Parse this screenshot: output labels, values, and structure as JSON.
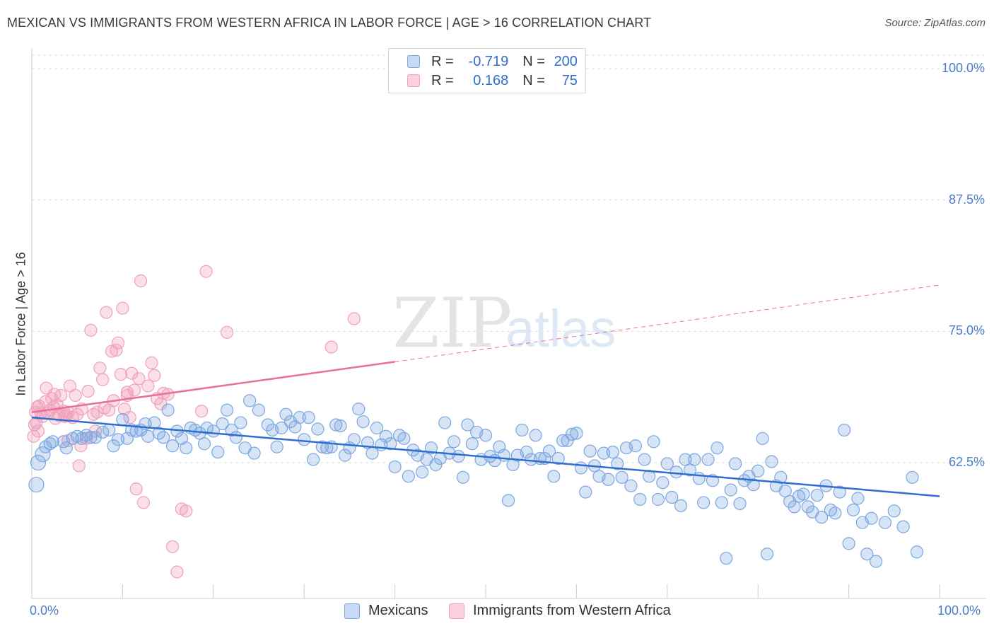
{
  "title": "MEXICAN VS IMMIGRANTS FROM WESTERN AFRICA IN LABOR FORCE | AGE > 16 CORRELATION CHART",
  "source": "Source: ZipAtlas.com",
  "watermark": {
    "zip": "ZIP",
    "atlas": "atlas"
  },
  "legend": {
    "r_label": "R =",
    "n_label": "N =",
    "rows": [
      {
        "r": "-0.719",
        "n": "200"
      },
      {
        "r": "0.168",
        "n": "75"
      }
    ]
  },
  "bottom_legend": [
    "Mexicans",
    "Immigrants from Western Africa"
  ],
  "colors": {
    "blue": "#7ba7e0",
    "blue_line": "#2f6ecf",
    "pink": "#f0a0bc",
    "pink_line": "#e8709a",
    "axis_text": "#4a7ecb"
  },
  "chart_data": {
    "type": "scatter",
    "title": "MEXICAN VS IMMIGRANTS FROM WESTERN AFRICA IN LABOR FORCE | AGE > 16 CORRELATION CHART",
    "xlabel": "",
    "ylabel": "In Labor Force | Age > 16",
    "xlim": [
      0,
      100
    ],
    "ylim": [
      51.5,
      101.5
    ],
    "x_tick_labels": [
      "0.0%",
      "100.0%"
    ],
    "y_ticks": [
      62.5,
      75.0,
      87.5,
      100.0
    ],
    "y_tick_labels": [
      "62.5%",
      "75.0%",
      "87.5%",
      "100.0%"
    ],
    "grid": true,
    "legend_position": "top-center",
    "series": [
      {
        "name": "Mexicans",
        "color": "#7ba7e0",
        "r": -0.719,
        "n": 200,
        "trend": {
          "x": [
            0,
            100
          ],
          "y": [
            66.8,
            59.3
          ]
        },
        "points": [
          [
            0.5,
            60.4
          ],
          [
            0.7,
            62.5
          ],
          [
            1.2,
            63.3
          ],
          [
            1.5,
            64.0
          ],
          [
            2.0,
            64.3
          ],
          [
            2.3,
            64.5
          ],
          [
            3.5,
            64.5
          ],
          [
            3.8,
            63.9
          ],
          [
            4.5,
            64.8
          ],
          [
            5.0,
            65.0
          ],
          [
            5.5,
            64.8
          ],
          [
            6.0,
            65.1
          ],
          [
            6.5,
            64.9
          ],
          [
            7.0,
            64.9
          ],
          [
            7.8,
            65.4
          ],
          [
            8.5,
            65.6
          ],
          [
            9.0,
            64.1
          ],
          [
            9.5,
            64.7
          ],
          [
            10.0,
            66.6
          ],
          [
            10.5,
            64.8
          ],
          [
            11.0,
            65.6
          ],
          [
            11.5,
            65.5
          ],
          [
            12.0,
            65.6
          ],
          [
            12.5,
            66.2
          ],
          [
            12.8,
            65.0
          ],
          [
            13.5,
            66.3
          ],
          [
            14.0,
            65.3
          ],
          [
            14.5,
            64.9
          ],
          [
            15.0,
            67.5
          ],
          [
            15.5,
            64.1
          ],
          [
            16.0,
            65.5
          ],
          [
            16.5,
            64.8
          ],
          [
            17.0,
            63.9
          ],
          [
            17.5,
            65.8
          ],
          [
            18.0,
            65.6
          ],
          [
            18.5,
            65.3
          ],
          [
            19.0,
            64.3
          ],
          [
            19.3,
            65.8
          ],
          [
            20.0,
            65.5
          ],
          [
            20.5,
            63.5
          ],
          [
            21.0,
            66.2
          ],
          [
            21.5,
            67.5
          ],
          [
            22.0,
            65.6
          ],
          [
            22.5,
            64.9
          ],
          [
            23.0,
            66.3
          ],
          [
            23.5,
            63.9
          ],
          [
            24.0,
            68.4
          ],
          [
            24.5,
            63.4
          ],
          [
            25.0,
            67.5
          ],
          [
            26.0,
            66.1
          ],
          [
            26.5,
            65.6
          ],
          [
            27.0,
            64.0
          ],
          [
            27.5,
            65.8
          ],
          [
            28.0,
            67.1
          ],
          [
            28.5,
            66.4
          ],
          [
            29.0,
            65.9
          ],
          [
            29.5,
            66.8
          ],
          [
            30.0,
            64.7
          ],
          [
            30.5,
            66.8
          ],
          [
            31.0,
            62.8
          ],
          [
            31.5,
            65.7
          ],
          [
            32.0,
            64.0
          ],
          [
            32.5,
            63.9
          ],
          [
            33.0,
            64.0
          ],
          [
            33.5,
            66.1
          ],
          [
            34.0,
            66.0
          ],
          [
            34.5,
            63.2
          ],
          [
            35.0,
            63.9
          ],
          [
            35.5,
            64.7
          ],
          [
            36.0,
            67.6
          ],
          [
            36.5,
            66.4
          ],
          [
            37.0,
            64.4
          ],
          [
            37.5,
            63.4
          ],
          [
            38.0,
            65.8
          ],
          [
            38.5,
            64.2
          ],
          [
            39.0,
            65.0
          ],
          [
            39.5,
            64.3
          ],
          [
            40.0,
            62.1
          ],
          [
            40.5,
            65.1
          ],
          [
            41.0,
            64.8
          ],
          [
            41.5,
            61.2
          ],
          [
            42.0,
            63.7
          ],
          [
            42.5,
            63.2
          ],
          [
            43.0,
            61.6
          ],
          [
            43.5,
            62.8
          ],
          [
            44.0,
            63.9
          ],
          [
            44.5,
            62.3
          ],
          [
            45.0,
            62.9
          ],
          [
            45.5,
            66.3
          ],
          [
            46.0,
            63.4
          ],
          [
            46.5,
            64.5
          ],
          [
            47.0,
            63.1
          ],
          [
            47.5,
            61.1
          ],
          [
            48.0,
            66.1
          ],
          [
            48.5,
            64.3
          ],
          [
            49.0,
            65.4
          ],
          [
            49.5,
            62.8
          ],
          [
            50.0,
            65.1
          ],
          [
            50.5,
            63.1
          ],
          [
            51.0,
            62.7
          ],
          [
            51.5,
            64.0
          ],
          [
            52.0,
            63.2
          ],
          [
            52.5,
            58.9
          ],
          [
            53.0,
            62.3
          ],
          [
            53.5,
            63.2
          ],
          [
            54.0,
            65.6
          ],
          [
            54.5,
            63.5
          ],
          [
            55.0,
            62.8
          ],
          [
            55.5,
            65.1
          ],
          [
            56.0,
            62.9
          ],
          [
            56.5,
            62.9
          ],
          [
            57.0,
            63.6
          ],
          [
            57.5,
            61.2
          ],
          [
            58.0,
            62.9
          ],
          [
            58.5,
            64.6
          ],
          [
            59.0,
            64.6
          ],
          [
            59.5,
            65.2
          ],
          [
            60.0,
            65.3
          ],
          [
            60.5,
            62.0
          ],
          [
            61.0,
            59.7
          ],
          [
            61.5,
            63.6
          ],
          [
            62.0,
            62.2
          ],
          [
            62.5,
            61.2
          ],
          [
            63.0,
            63.4
          ],
          [
            63.5,
            60.9
          ],
          [
            64.0,
            63.5
          ],
          [
            64.5,
            62.4
          ],
          [
            65.0,
            61.1
          ],
          [
            65.5,
            63.9
          ],
          [
            66.0,
            60.3
          ],
          [
            66.5,
            64.1
          ],
          [
            67.0,
            59.0
          ],
          [
            67.5,
            62.8
          ],
          [
            68.0,
            61.2
          ],
          [
            68.5,
            64.5
          ],
          [
            69.0,
            59.0
          ],
          [
            69.5,
            60.6
          ],
          [
            70.0,
            62.4
          ],
          [
            70.5,
            59.2
          ],
          [
            71.0,
            61.6
          ],
          [
            71.5,
            58.4
          ],
          [
            72.0,
            62.8
          ],
          [
            72.5,
            61.8
          ],
          [
            73.0,
            62.8
          ],
          [
            73.5,
            61.0
          ],
          [
            74.0,
            58.7
          ],
          [
            74.5,
            62.8
          ],
          [
            75.0,
            60.8
          ],
          [
            75.5,
            63.9
          ],
          [
            76.0,
            58.7
          ],
          [
            76.5,
            53.4
          ],
          [
            77.0,
            59.9
          ],
          [
            77.5,
            62.4
          ],
          [
            78.0,
            58.6
          ],
          [
            78.5,
            60.8
          ],
          [
            79.0,
            61.2
          ],
          [
            79.5,
            60.4
          ],
          [
            80.0,
            61.7
          ],
          [
            80.5,
            64.8
          ],
          [
            81.0,
            53.8
          ],
          [
            81.5,
            62.6
          ],
          [
            82.0,
            60.3
          ],
          [
            82.5,
            61.1
          ],
          [
            83.0,
            59.8
          ],
          [
            83.5,
            58.8
          ],
          [
            84.0,
            58.3
          ],
          [
            84.5,
            59.3
          ],
          [
            85.0,
            59.5
          ],
          [
            85.5,
            58.3
          ],
          [
            86.0,
            57.8
          ],
          [
            86.5,
            59.4
          ],
          [
            87.0,
            57.3
          ],
          [
            87.5,
            60.3
          ],
          [
            88.0,
            58.0
          ],
          [
            88.5,
            57.7
          ],
          [
            89.0,
            59.7
          ],
          [
            89.5,
            65.6
          ],
          [
            90.0,
            54.8
          ],
          [
            90.5,
            58.0
          ],
          [
            91.0,
            59.1
          ],
          [
            91.5,
            56.8
          ],
          [
            92.0,
            53.8
          ],
          [
            92.5,
            57.2
          ],
          [
            93.0,
            53.1
          ],
          [
            94.0,
            56.8
          ],
          [
            95.0,
            57.9
          ],
          [
            96.0,
            56.4
          ],
          [
            97.0,
            61.1
          ],
          [
            97.5,
            54.0
          ]
        ]
      },
      {
        "name": "Immigrants from Western Africa",
        "color": "#f0a0bc",
        "r": 0.168,
        "n": 75,
        "trend": {
          "x": [
            0,
            40.0
          ],
          "y": [
            67.3,
            72.1
          ]
        },
        "trend_extended": {
          "x": [
            40.0,
            100
          ],
          "y": [
            72.1,
            79.4
          ]
        },
        "points": [
          [
            0.2,
            65.0
          ],
          [
            0.3,
            66.1
          ],
          [
            0.4,
            67.3
          ],
          [
            0.5,
            66.3
          ],
          [
            0.6,
            67.8
          ],
          [
            0.7,
            65.5
          ],
          [
            0.8,
            67.9
          ],
          [
            1.0,
            67.2
          ],
          [
            1.2,
            66.9
          ],
          [
            1.5,
            68.3
          ],
          [
            1.6,
            69.6
          ],
          [
            1.8,
            67.2
          ],
          [
            2.0,
            67.5
          ],
          [
            2.2,
            68.6
          ],
          [
            2.4,
            67.8
          ],
          [
            2.5,
            69.0
          ],
          [
            2.6,
            66.7
          ],
          [
            2.8,
            68.0
          ],
          [
            3.0,
            67.0
          ],
          [
            3.2,
            68.9
          ],
          [
            3.5,
            67.4
          ],
          [
            3.6,
            66.9
          ],
          [
            3.8,
            67.0
          ],
          [
            4.0,
            67.3
          ],
          [
            4.2,
            69.8
          ],
          [
            4.5,
            66.8
          ],
          [
            4.8,
            68.9
          ],
          [
            5.0,
            67.1
          ],
          [
            5.2,
            62.2
          ],
          [
            5.4,
            64.1
          ],
          [
            5.5,
            67.6
          ],
          [
            6.0,
            64.8
          ],
          [
            6.2,
            69.3
          ],
          [
            6.5,
            75.1
          ],
          [
            6.8,
            67.1
          ],
          [
            7.0,
            65.5
          ],
          [
            7.2,
            67.3
          ],
          [
            7.5,
            71.5
          ],
          [
            7.8,
            70.4
          ],
          [
            8.0,
            67.7
          ],
          [
            8.2,
            76.8
          ],
          [
            8.5,
            67.5
          ],
          [
            8.8,
            73.1
          ],
          [
            9.0,
            68.4
          ],
          [
            9.3,
            73.2
          ],
          [
            9.5,
            73.9
          ],
          [
            9.8,
            70.9
          ],
          [
            10.0,
            77.2
          ],
          [
            10.2,
            67.6
          ],
          [
            10.5,
            68.9
          ],
          [
            10.8,
            66.8
          ],
          [
            11.0,
            71.0
          ],
          [
            11.3,
            69.4
          ],
          [
            11.5,
            60.0
          ],
          [
            11.8,
            70.5
          ],
          [
            12.0,
            79.8
          ],
          [
            12.3,
            58.7
          ],
          [
            12.8,
            69.8
          ],
          [
            13.2,
            72.0
          ],
          [
            13.5,
            70.8
          ],
          [
            13.8,
            68.6
          ],
          [
            14.2,
            68.1
          ],
          [
            14.5,
            69.1
          ],
          [
            15.0,
            69.0
          ],
          [
            15.5,
            54.5
          ],
          [
            16.0,
            52.1
          ],
          [
            16.5,
            58.1
          ],
          [
            17.0,
            57.9
          ],
          [
            18.7,
            67.4
          ],
          [
            19.2,
            80.7
          ],
          [
            21.5,
            74.9
          ],
          [
            33.0,
            73.5
          ],
          [
            35.5,
            76.2
          ],
          [
            4.0,
            64.6
          ],
          [
            10.5,
            69.2
          ]
        ]
      }
    ]
  }
}
